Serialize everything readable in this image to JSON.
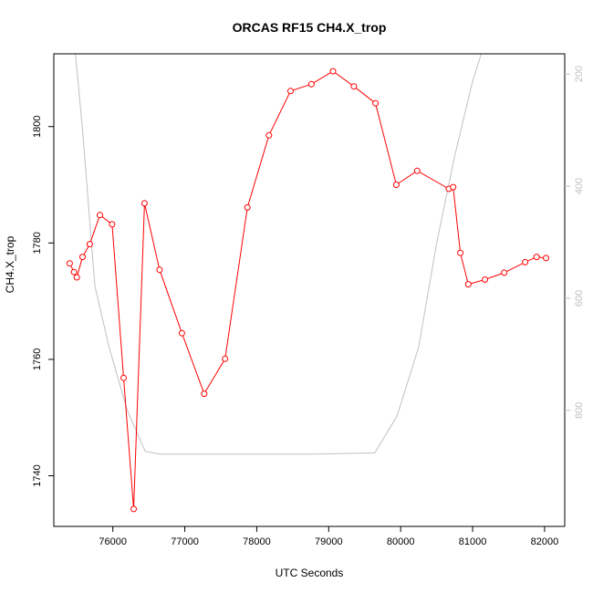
{
  "chart_data": {
    "type": "line",
    "title": "ORCAS RF15 CH4.X_trop",
    "xlabel": "UTC Seconds",
    "ylabel": "CH4.X_trop",
    "xlim": [
      75180,
      82280
    ],
    "ylim": [
      1731.3,
      1812.5
    ],
    "y2lim": [
      1007,
      164
    ],
    "x_ticks": [
      "76000",
      "77000",
      "78000",
      "79000",
      "80000",
      "81000",
      "82000"
    ],
    "y_ticks": [
      "1740",
      "1760",
      "1780",
      "1800"
    ],
    "y2_ticks": [
      "200",
      "400",
      "600",
      "800"
    ],
    "colors": {
      "series": "#ff0000",
      "secondary": "#c0c0c0",
      "axes": "#000000"
    },
    "series": [
      {
        "points": [
          [
            75400,
            1776.5
          ],
          [
            75460,
            1775.0
          ],
          [
            75500,
            1774.1
          ],
          [
            75580,
            1777.6
          ],
          [
            75680,
            1779.8
          ],
          [
            75820,
            1784.8
          ],
          [
            75990,
            1783.2
          ],
          [
            76150,
            1756.8
          ],
          [
            76290,
            1734.3
          ],
          [
            76440,
            1786.8
          ],
          [
            76650,
            1775.4
          ],
          [
            76960,
            1764.5
          ],
          [
            77270,
            1754.1
          ],
          [
            77560,
            1760.1
          ],
          [
            77870,
            1786.1
          ],
          [
            78170,
            1798.5
          ],
          [
            78470,
            1806.1
          ],
          [
            78760,
            1807.3
          ],
          [
            79060,
            1809.5
          ],
          [
            79350,
            1806.9
          ],
          [
            79650,
            1804.0
          ],
          [
            79940,
            1790.0
          ],
          [
            80230,
            1792.4
          ],
          [
            80670,
            1789.3
          ],
          [
            80730,
            1789.6
          ],
          [
            80830,
            1778.3
          ],
          [
            80940,
            1772.9
          ],
          [
            81170,
            1773.7
          ],
          [
            81440,
            1774.9
          ],
          [
            81730,
            1776.7
          ],
          [
            81890,
            1777.6
          ],
          [
            82020,
            1777.4
          ]
        ]
      },
      {
        "axis": "right",
        "points": [
          [
            75480,
            164
          ],
          [
            75580,
            300
          ],
          [
            75750,
            578
          ],
          [
            75950,
            688
          ],
          [
            76200,
            800
          ],
          [
            76450,
            873
          ],
          [
            76650,
            878
          ],
          [
            77400,
            878
          ],
          [
            78800,
            878
          ],
          [
            79640,
            876
          ],
          [
            79950,
            810
          ],
          [
            80250,
            687
          ],
          [
            80500,
            502
          ],
          [
            80750,
            347
          ],
          [
            81000,
            213
          ],
          [
            81120,
            164
          ]
        ]
      }
    ]
  }
}
